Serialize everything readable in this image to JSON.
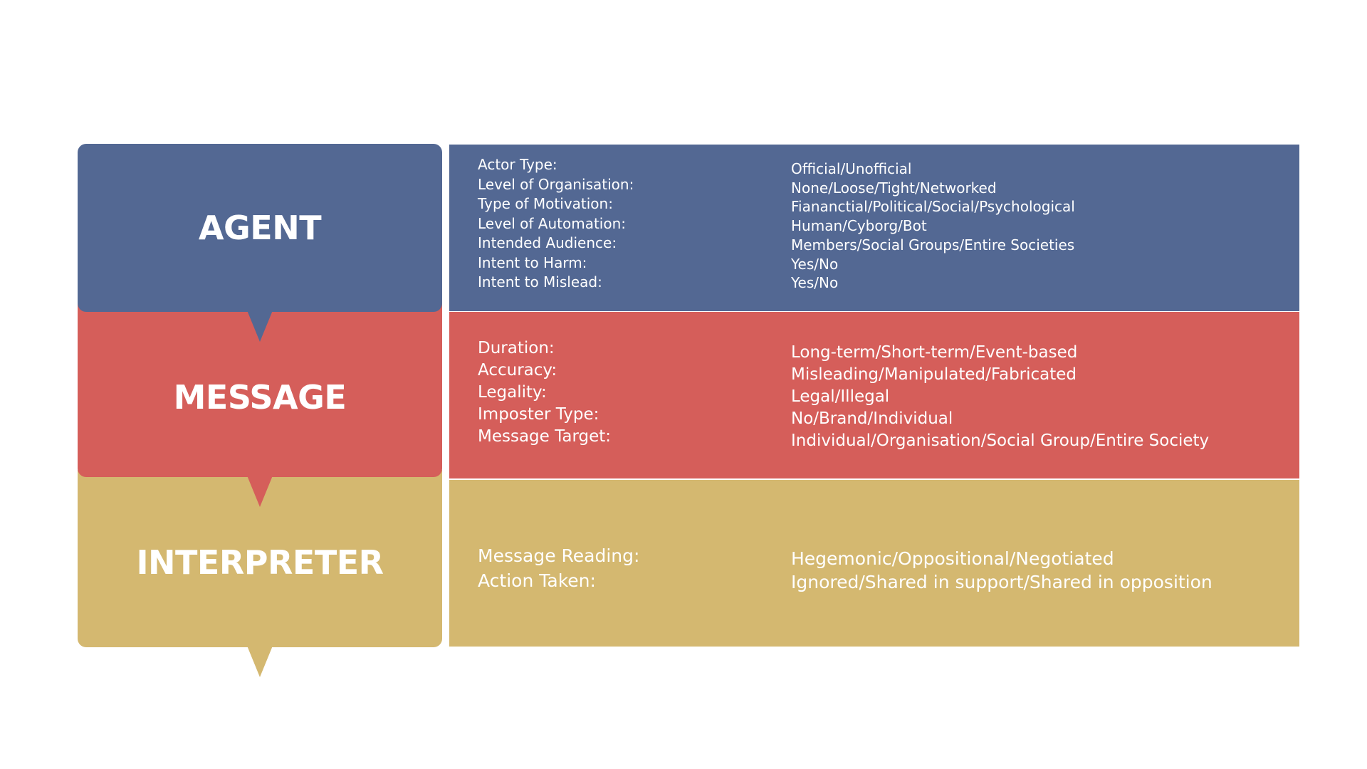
{
  "colors": {
    "agent": "#536893",
    "message": "#d55e5a",
    "interpreter": "#d4b870",
    "text": "#ffffff",
    "background": "#ffffff"
  },
  "sections": {
    "agent": {
      "label": "AGENT",
      "keys": [
        "Actor Type:",
        "Level of Organisation:",
        "Type of Motivation:",
        "Level of Automation:",
        "Intended Audience:",
        "Intent to Harm:",
        "Intent to Mislead:"
      ],
      "values": [
        "Official/Unofficial",
        "None/Loose/Tight/Networked",
        "Fiananctial/Political/Social/Psychological",
        "Human/Cyborg/Bot",
        "Members/Social Groups/Entire Societies",
        "Yes/No",
        "Yes/No"
      ]
    },
    "message": {
      "label": "MESSAGE",
      "keys": [
        "Duration:",
        "Accuracy:",
        "Legality:",
        "Imposter Type:",
        "Message Target:"
      ],
      "values": [
        "Long-term/Short-term/Event-based",
        "Misleading/Manipulated/Fabricated",
        "Legal/Illegal",
        "No/Brand/Individual",
        "Individual/Organisation/Social Group/Entire Society"
      ]
    },
    "interpreter": {
      "label": "INTERPRETER",
      "keys": [
        "Message Reading:",
        "Action Taken:"
      ],
      "values": [
        "Hegemonic/Oppositional/Negotiated",
        "Ignored/Shared in support/Shared in opposition"
      ]
    }
  }
}
